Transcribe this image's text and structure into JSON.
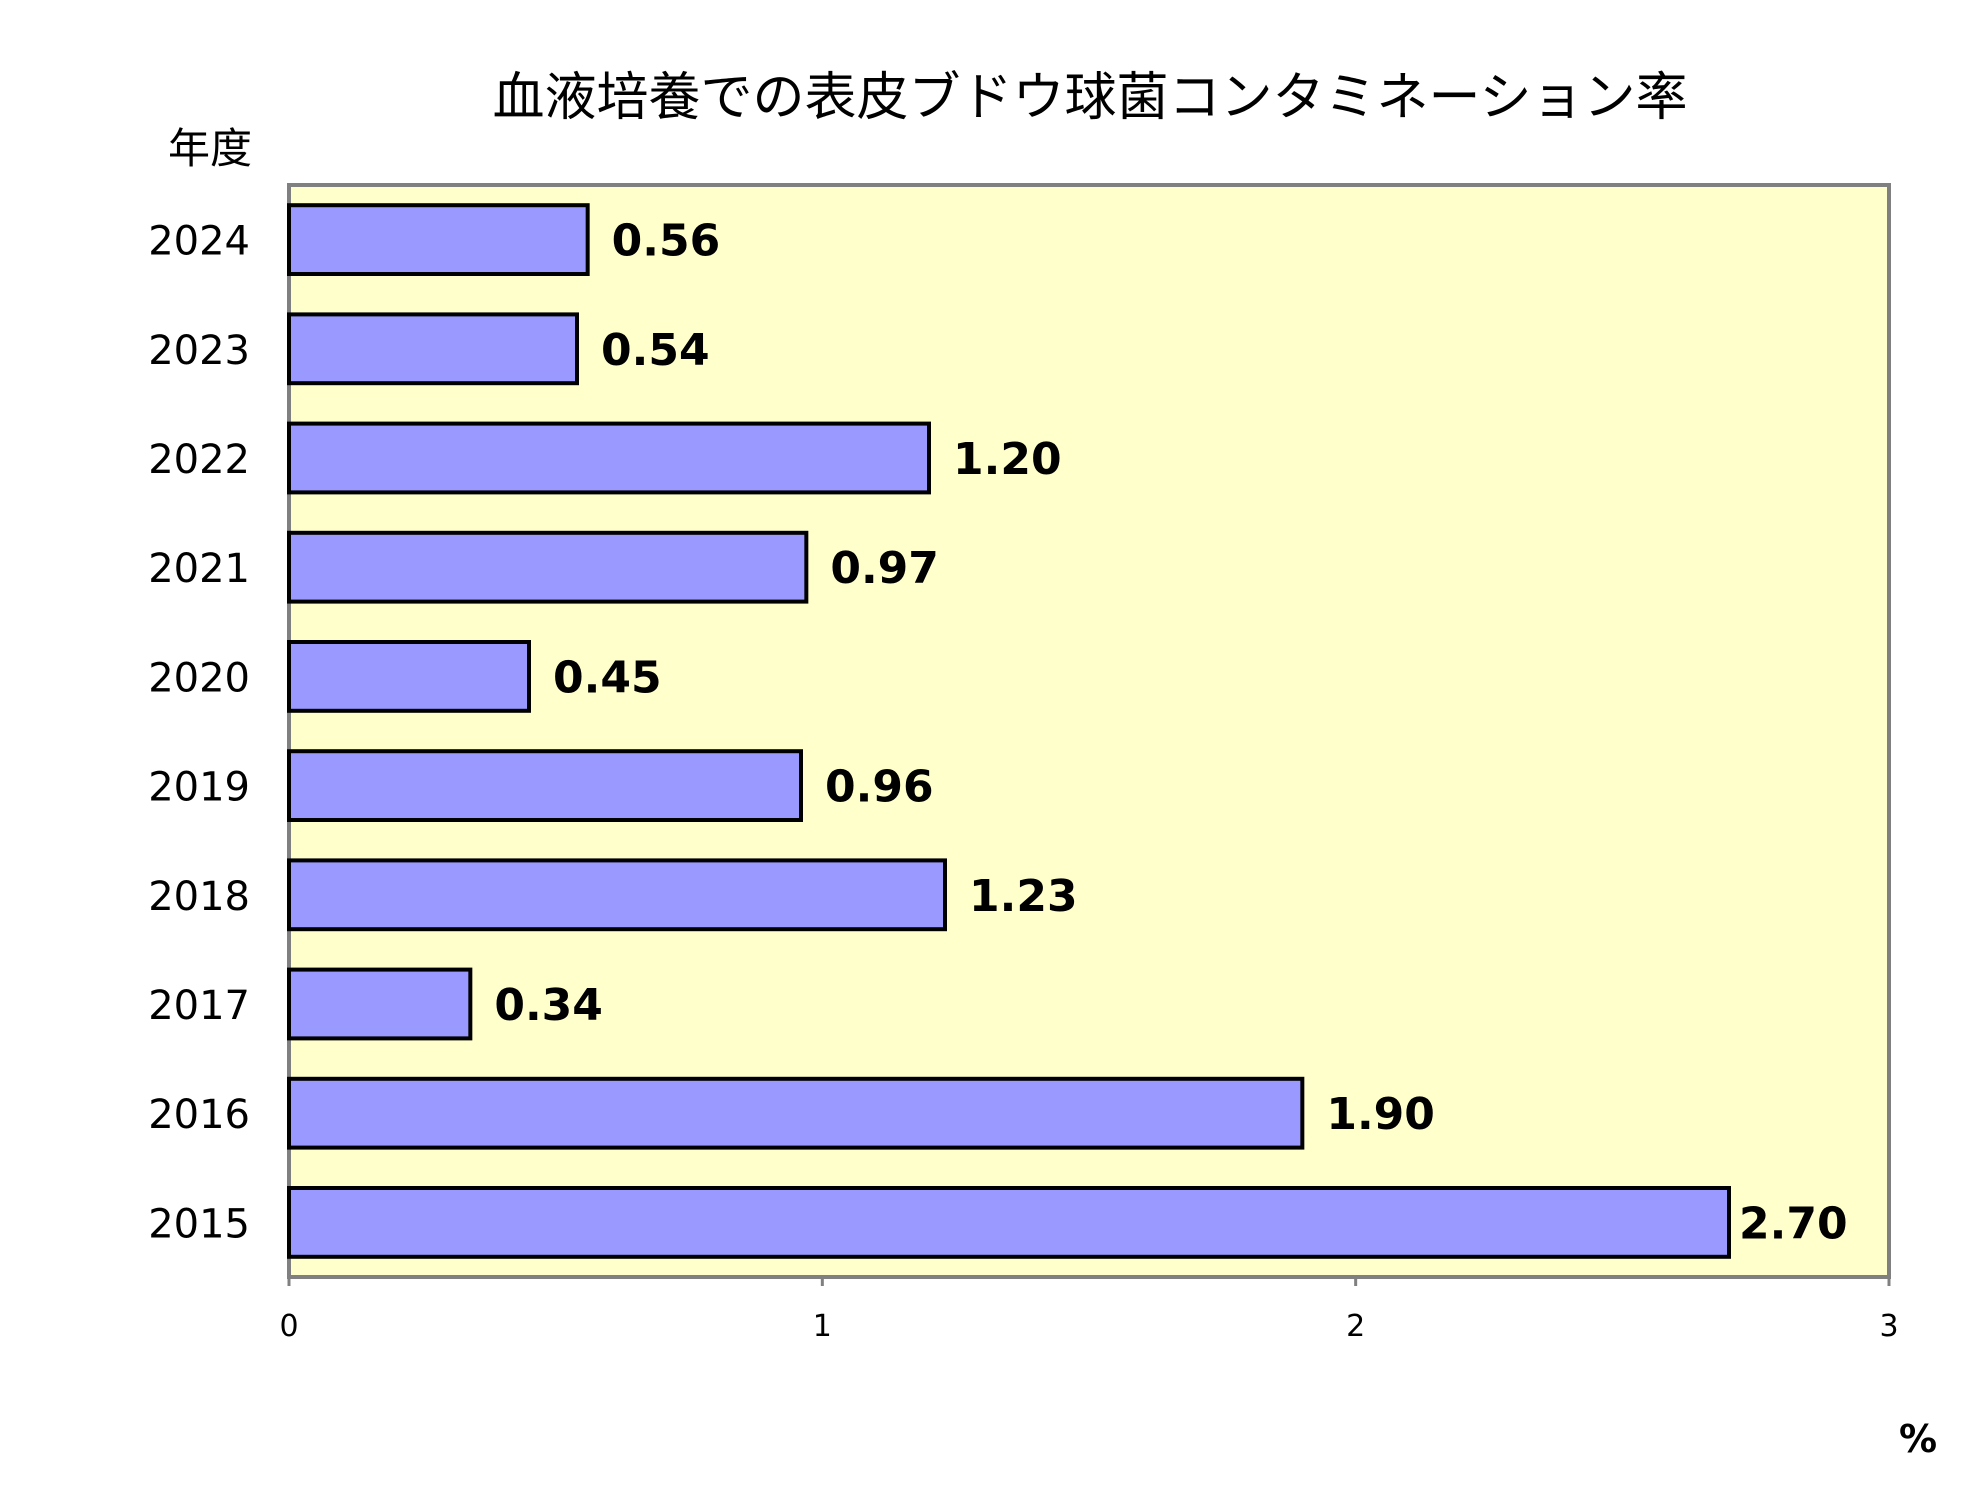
{
  "chart_data": {
    "type": "bar",
    "orientation": "horizontal",
    "title": "血液培養での表皮ブドウ球菌コンタミネーション率",
    "ylabel": "年度",
    "xlabel": "%",
    "categories": [
      "2024",
      "2023",
      "2022",
      "2021",
      "2020",
      "2019",
      "2018",
      "2017",
      "2016",
      "2015"
    ],
    "values": [
      0.56,
      0.54,
      1.2,
      0.97,
      0.45,
      0.96,
      1.23,
      0.34,
      1.9,
      2.7
    ],
    "data_labels": [
      "0.56",
      "0.54",
      "1.20",
      "0.97",
      "0.45",
      "0.96",
      "1.23",
      "0.34",
      "1.90",
      "2.70"
    ],
    "xlim": [
      0,
      3
    ],
    "x_ticks": [
      0,
      1,
      2,
      3
    ],
    "x_tick_labels": [
      "0",
      "1",
      "2",
      "3"
    ],
    "grid": false,
    "legend": "none",
    "colors": {
      "bar_fill": "#9999ff",
      "bar_stroke": "#000000",
      "plot_background": "#ffffcc",
      "plot_border": "#808080"
    }
  }
}
